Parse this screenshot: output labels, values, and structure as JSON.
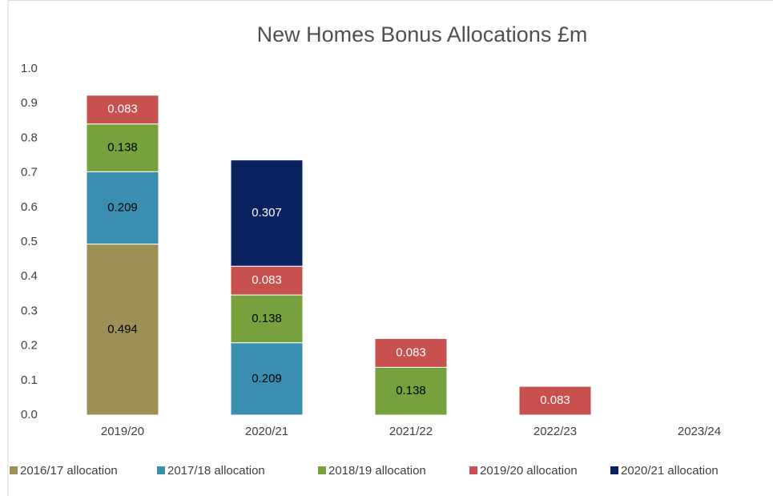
{
  "chart_data": {
    "type": "stacked_bar",
    "title": "New Homes Bonus Allocations  £m",
    "categories": [
      "2019/20",
      "2020/21",
      "2021/22",
      "2022/23",
      "2023/24"
    ],
    "series": [
      {
        "name": "2016/17 allocation",
        "color": "#9c9057",
        "values": [
          0.494,
          null,
          null,
          null,
          null
        ]
      },
      {
        "name": "2017/18 allocation",
        "color": "#3a8fb0",
        "values": [
          0.209,
          0.209,
          null,
          null,
          null
        ]
      },
      {
        "name": "2018/19 allocation",
        "color": "#77a13c",
        "values": [
          0.138,
          0.138,
          0.138,
          null,
          null
        ]
      },
      {
        "name": "2019/20 allocation",
        "color": "#c8504f",
        "values": [
          0.083,
          0.083,
          0.083,
          0.083,
          null
        ]
      },
      {
        "name": "2020/21 allocation",
        "color": "#0b2260",
        "values": [
          null,
          0.307,
          null,
          null,
          null
        ]
      }
    ],
    "ylim": [
      0,
      1
    ],
    "yticks": [
      {
        "value": 0,
        "label": "0.0"
      },
      0.1,
      0.2,
      0.3,
      0.4,
      0.5,
      0.6,
      0.7,
      0.8,
      0.9,
      {
        "value": 1,
        "label": "1.0"
      }
    ],
    "legend": "bottom"
  }
}
